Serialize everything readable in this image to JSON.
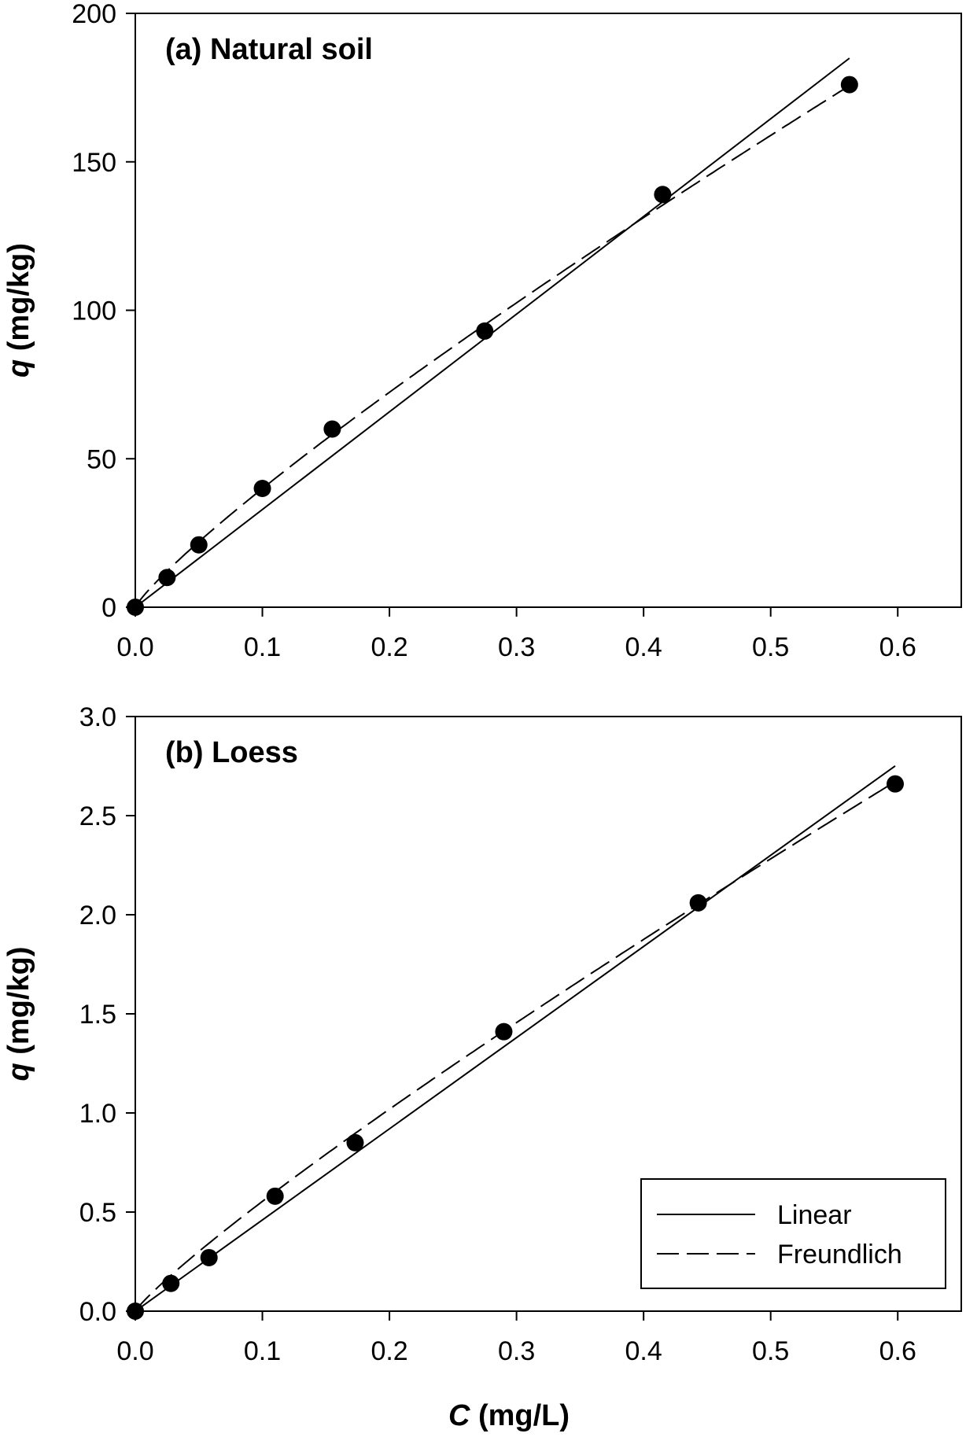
{
  "chart_data": [
    {
      "type": "scatter",
      "title": "(a) Natural soil",
      "xlabel": "",
      "ylabel": "q (mg/kg)",
      "ylabel_italic": "q",
      "ylabel_rest": " (mg/kg)",
      "xlim": [
        0,
        0.65
      ],
      "ylim": [
        0,
        200
      ],
      "xticks": [
        "0.0",
        "0.1",
        "0.2",
        "0.3",
        "0.4",
        "0.5",
        "0.6"
      ],
      "yticks": [
        "0",
        "50",
        "100",
        "150",
        "200"
      ],
      "points": {
        "x": [
          0,
          0.025,
          0.05,
          0.1,
          0.155,
          0.275,
          0.415,
          0.562
        ],
        "y": [
          0,
          10,
          21,
          40,
          60,
          93,
          139,
          176
        ]
      },
      "linear_fit": {
        "slope": 329,
        "xmax": 0.562
      },
      "freundlich_fit": {
        "K": 288,
        "n": 0.858,
        "xmax": 0.562
      }
    },
    {
      "type": "scatter",
      "title": "(b) Loess",
      "xlabel": "C (mg/L)",
      "xlabel_italic": "C",
      "xlabel_rest": " (mg/L)",
      "ylabel": "q (mg/kg)",
      "ylabel_italic": "q",
      "ylabel_rest": " (mg/kg)",
      "xlim": [
        0,
        0.65
      ],
      "ylim": [
        0,
        3.0
      ],
      "xticks": [
        "0.0",
        "0.1",
        "0.2",
        "0.3",
        "0.4",
        "0.5",
        "0.6"
      ],
      "yticks": [
        "0.0",
        "0.5",
        "1.0",
        "1.5",
        "2.0",
        "2.5",
        "3.0"
      ],
      "points": {
        "x": [
          0,
          0.028,
          0.058,
          0.11,
          0.173,
          0.29,
          0.443,
          0.598
        ],
        "y": [
          0,
          0.14,
          0.27,
          0.58,
          0.85,
          1.41,
          2.06,
          2.66
        ]
      },
      "linear_fit": {
        "slope": 4.6,
        "xmax": 0.598
      },
      "freundlich_fit": {
        "K": 4.2,
        "n": 0.88,
        "xmax": 0.598
      },
      "legend": {
        "position": "bottom-right",
        "entries": [
          "Linear",
          "Freundlich"
        ]
      }
    }
  ]
}
